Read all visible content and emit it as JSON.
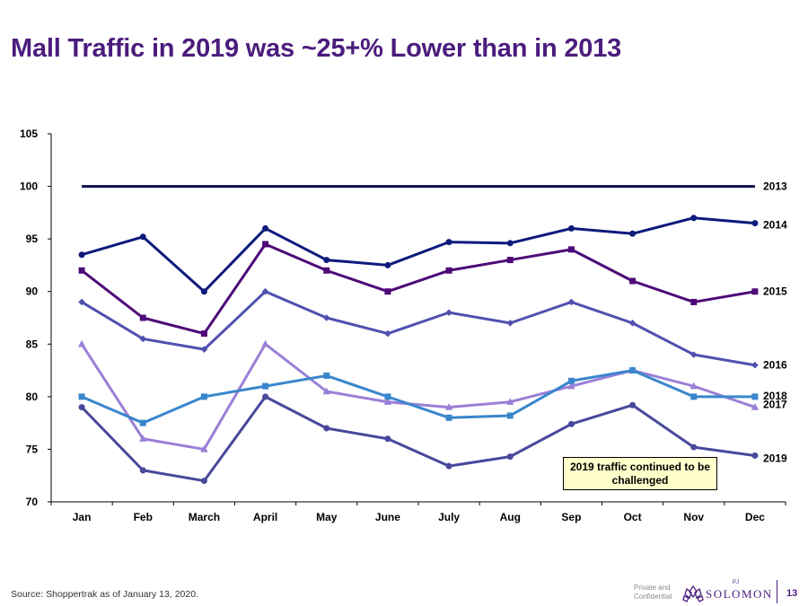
{
  "slide": {
    "title": "Mall Traffic in 2019 was ~25+% Lower than in 2013",
    "source": "Source: Shoppertrak as of January 13, 2020.",
    "confidential_line1": "Private and",
    "confidential_line2": "Confidential",
    "logo_text": "SOLOMON",
    "logo_prefix": "PJ",
    "page_number": "13"
  },
  "colors": {
    "title": "#4b1c7d",
    "s2013": "#0d0d4d",
    "s2014": "#0e1a7c",
    "s2015": "#4e0a78",
    "s2016": "#5050b0",
    "s2017": "#9a7fd6",
    "s2018": "#3a86cc",
    "s2019": "#48489c"
  },
  "chart_data": {
    "type": "line",
    "title": "",
    "xlabel": "",
    "ylabel": "",
    "ylim": [
      70,
      105
    ],
    "yticks": [
      70,
      75,
      80,
      85,
      90,
      95,
      100,
      105
    ],
    "categories": [
      "Jan",
      "Feb",
      "March",
      "April",
      "May",
      "June",
      "July",
      "Aug",
      "Sep",
      "Oct",
      "Nov",
      "Dec"
    ],
    "series": [
      {
        "name": "2013",
        "marker": "none",
        "values": [
          100,
          100,
          100,
          100,
          100,
          100,
          100,
          100,
          100,
          100,
          100,
          100
        ]
      },
      {
        "name": "2014",
        "marker": "circle",
        "values": [
          93.5,
          95.2,
          90,
          96,
          93,
          92.5,
          94.7,
          94.6,
          96,
          95.5,
          97,
          96.5
        ]
      },
      {
        "name": "2015",
        "marker": "square",
        "values": [
          92,
          87.5,
          86,
          94.5,
          92,
          90,
          92,
          93,
          94,
          91,
          89,
          90
        ]
      },
      {
        "name": "2016",
        "marker": "diamond",
        "values": [
          89,
          85.5,
          84.5,
          90,
          87.5,
          86,
          88,
          87,
          89,
          87,
          84,
          83
        ]
      },
      {
        "name": "2017",
        "marker": "triangle",
        "values": [
          85,
          76,
          75,
          85,
          80.5,
          79.5,
          79,
          79.5,
          81,
          82.5,
          81,
          79
        ]
      },
      {
        "name": "2018",
        "marker": "square",
        "values": [
          80,
          77.5,
          80,
          81,
          82,
          80,
          78,
          78.2,
          81.5,
          82.5,
          80,
          80
        ]
      },
      {
        "name": "2019",
        "marker": "circle",
        "values": [
          79,
          73,
          72,
          80,
          77,
          76,
          73.4,
          74.3,
          77.4,
          79.2,
          75.2,
          74.4
        ]
      }
    ],
    "annotation": "2019 traffic continued to be challenged"
  }
}
